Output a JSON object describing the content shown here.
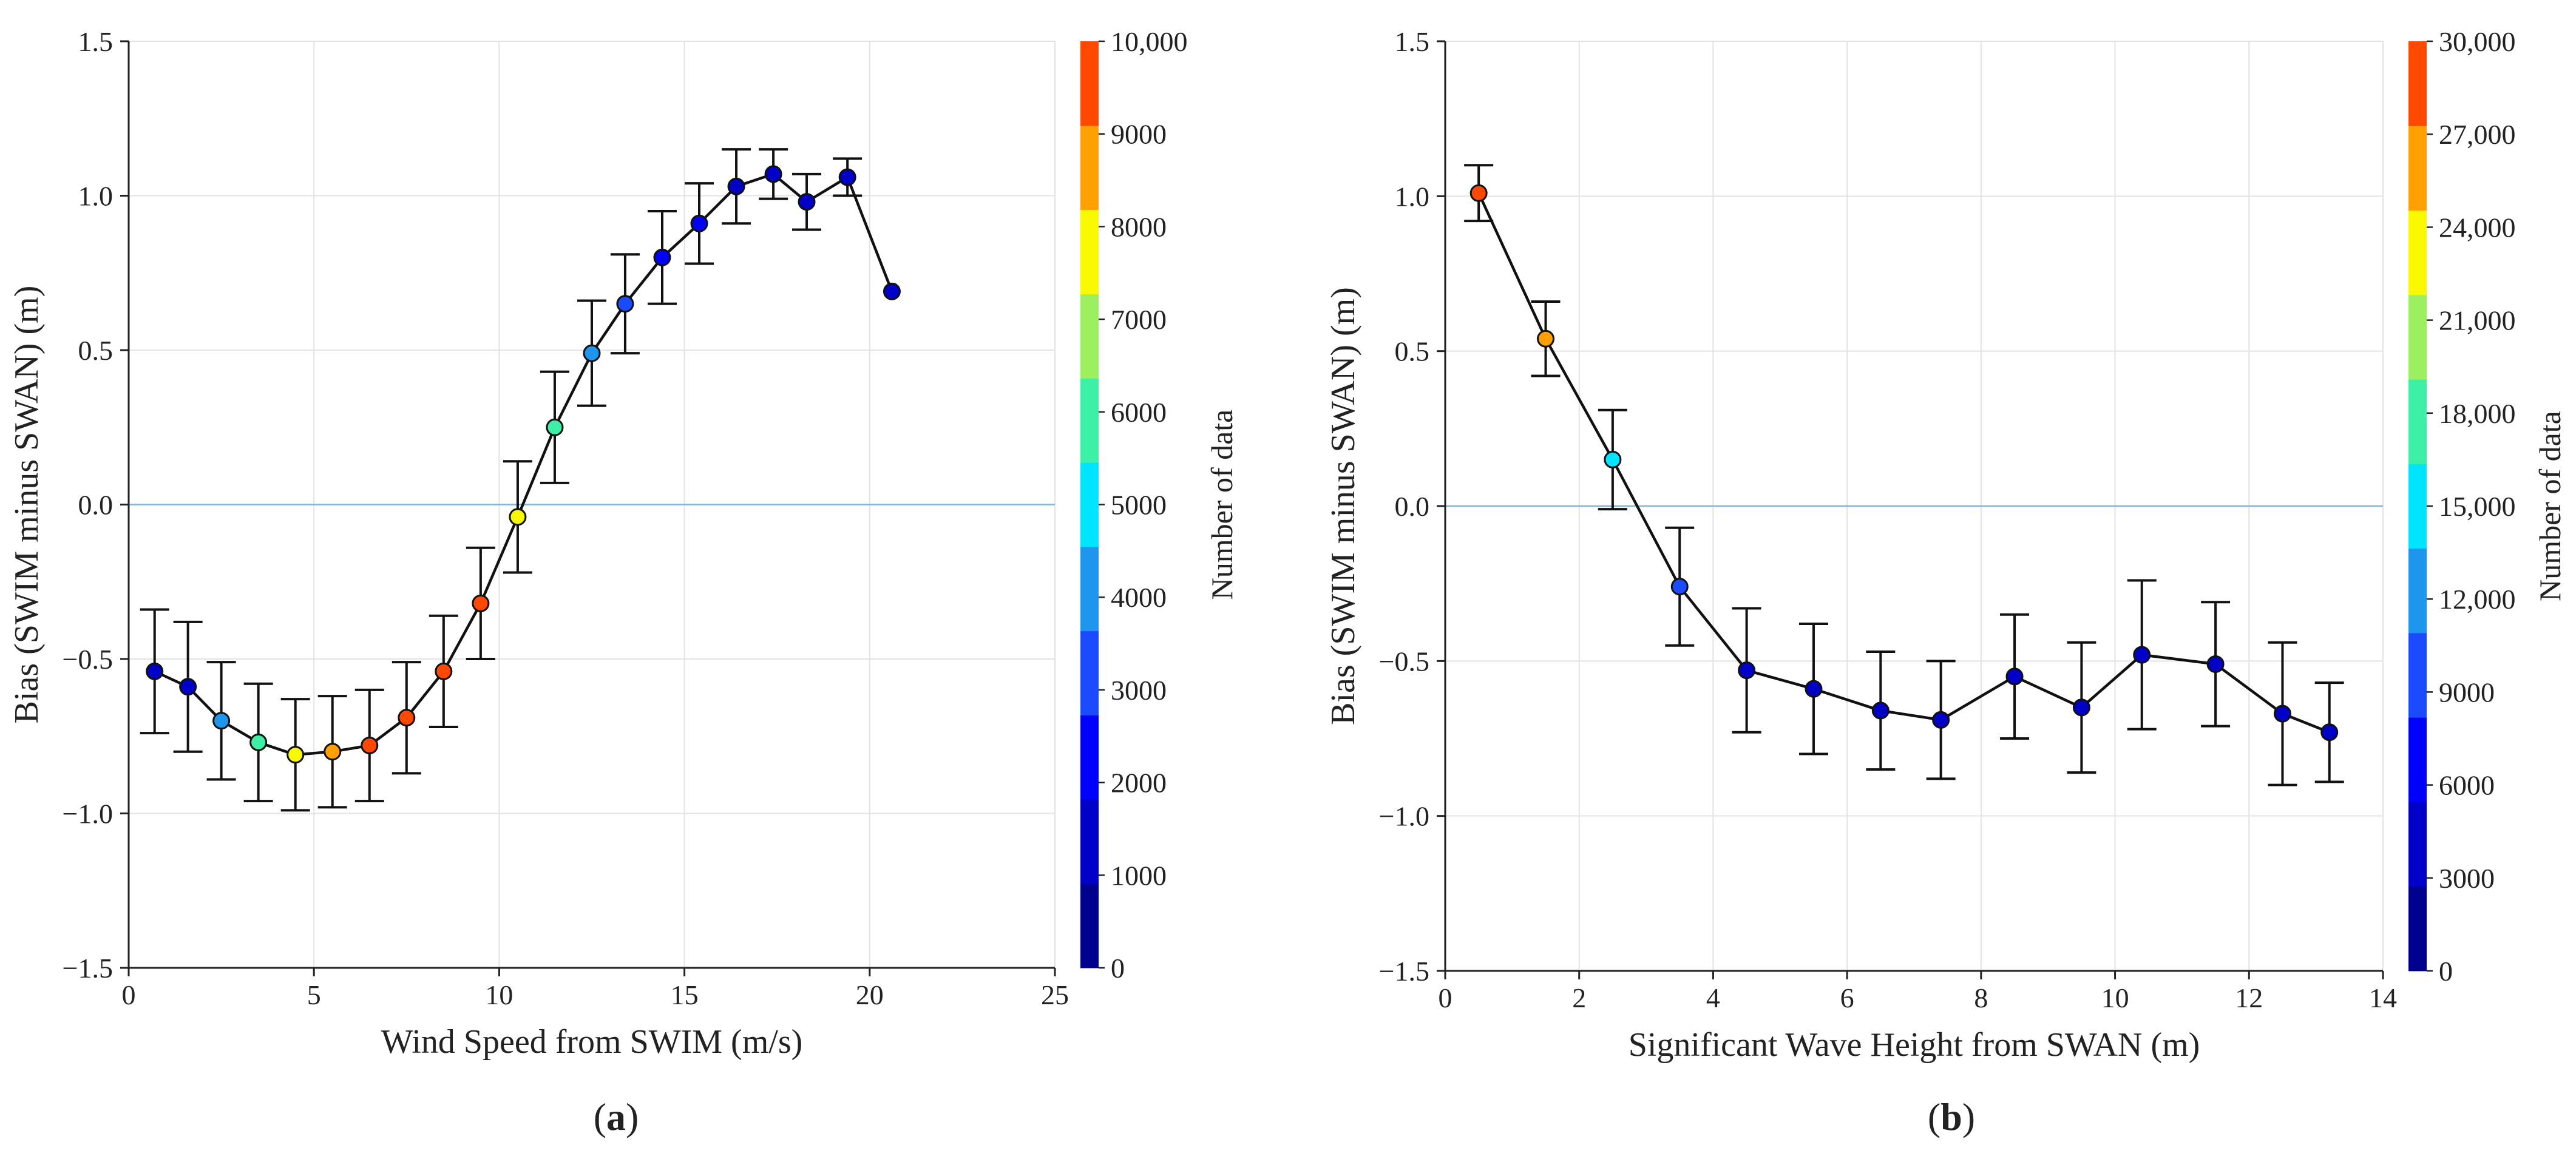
{
  "chart_data": [
    {
      "type": "scatter",
      "panel_label": "a",
      "title": "",
      "xlabel": "Wind Speed from SWIM (m/s)",
      "ylabel": "Bias (SWIM minus SWAN) (m)",
      "xlim": [
        0,
        25
      ],
      "ylim": [
        -1.5,
        1.5
      ],
      "xticks": [
        0,
        5,
        10,
        15,
        20,
        25
      ],
      "xtick_labels": [
        "0",
        "5",
        "10",
        "15",
        "20",
        "25"
      ],
      "yticks": [
        -1.5,
        -1.0,
        -0.5,
        0.0,
        0.5,
        1.0,
        1.5
      ],
      "ytick_labels": [
        "−1.5",
        "−1.0",
        "−0.5",
        "0.0",
        "0.5",
        "1.0",
        "1.5"
      ],
      "grid": true,
      "reference_line": 0,
      "colorbar": {
        "label": "Number of data",
        "min": 0,
        "max": 10000,
        "ticks": [
          0,
          1000,
          2000,
          3000,
          4000,
          5000,
          6000,
          7000,
          8000,
          9000,
          10000
        ],
        "tick_labels": [
          "0",
          "1000",
          "2000",
          "3000",
          "4000",
          "5000",
          "6000",
          "7000",
          "8000",
          "9000",
          "10,000"
        ],
        "colors": [
          "#00008f",
          "#0000c8",
          "#0000ff",
          "#1a4bff",
          "#1e96ee",
          "#00e5ff",
          "#3cf0a5",
          "#9cf060",
          "#f8f800",
          "#ffa000",
          "#ff4800"
        ]
      },
      "points": [
        {
          "x": 0.7,
          "y": -0.54,
          "err": 0.2,
          "count": 1500
        },
        {
          "x": 1.6,
          "y": -0.59,
          "err": 0.21,
          "count": 1500
        },
        {
          "x": 2.5,
          "y": -0.7,
          "err": 0.19,
          "count": 4200
        },
        {
          "x": 3.5,
          "y": -0.77,
          "err": 0.19,
          "count": 5500
        },
        {
          "x": 4.5,
          "y": -0.81,
          "err": 0.18,
          "count": 8000
        },
        {
          "x": 5.5,
          "y": -0.8,
          "err": 0.18,
          "count": 8600
        },
        {
          "x": 6.5,
          "y": -0.78,
          "err": 0.18,
          "count": 9700
        },
        {
          "x": 7.5,
          "y": -0.69,
          "err": 0.18,
          "count": 9700
        },
        {
          "x": 8.5,
          "y": -0.54,
          "err": 0.18,
          "count": 9700
        },
        {
          "x": 9.5,
          "y": -0.32,
          "err": 0.18,
          "count": 9700
        },
        {
          "x": 10.5,
          "y": -0.04,
          "err": 0.18,
          "count": 7500
        },
        {
          "x": 11.5,
          "y": 0.25,
          "err": 0.18,
          "count": 5700
        },
        {
          "x": 12.5,
          "y": 0.49,
          "err": 0.17,
          "count": 4200
        },
        {
          "x": 13.4,
          "y": 0.65,
          "err": 0.16,
          "count": 3500
        },
        {
          "x": 14.4,
          "y": 0.8,
          "err": 0.15,
          "count": 2500
        },
        {
          "x": 15.4,
          "y": 0.91,
          "err": 0.13,
          "count": 2500
        },
        {
          "x": 16.4,
          "y": 1.03,
          "err": 0.12,
          "count": 1500
        },
        {
          "x": 17.4,
          "y": 1.07,
          "err": 0.08,
          "count": 1500
        },
        {
          "x": 18.3,
          "y": 0.98,
          "err": 0.09,
          "count": 1500
        },
        {
          "x": 19.4,
          "y": 1.06,
          "err": 0.06,
          "count": 1500
        },
        {
          "x": 20.6,
          "y": 0.69,
          "err": 0,
          "count": 1500
        }
      ]
    },
    {
      "type": "scatter",
      "panel_label": "b",
      "title": "",
      "xlabel": "Significant Wave Height from SWAN (m)",
      "ylabel": "Bias (SWIM minus SWAN) (m)",
      "xlim": [
        0,
        14
      ],
      "ylim": [
        -1.5,
        1.5
      ],
      "xticks": [
        0,
        2,
        4,
        6,
        8,
        10,
        12,
        14
      ],
      "xtick_labels": [
        "0",
        "2",
        "4",
        "6",
        "8",
        "10",
        "12",
        "14"
      ],
      "yticks": [
        -1.5,
        -1.0,
        -0.5,
        0.0,
        0.5,
        1.0,
        1.5
      ],
      "ytick_labels": [
        "−1.5",
        "−1.0",
        "−0.5",
        "0.0",
        "0.5",
        "1.0",
        "1.5"
      ],
      "grid": true,
      "reference_line": 0,
      "colorbar": {
        "label": "Number of data",
        "min": 0,
        "max": 30000,
        "ticks": [
          0,
          3000,
          6000,
          9000,
          12000,
          15000,
          18000,
          21000,
          24000,
          27000,
          30000
        ],
        "tick_labels": [
          "0",
          "3000",
          "6000",
          "9000",
          "12,000",
          "15,000",
          "18,000",
          "21,000",
          "24,000",
          "27,000",
          "30,000"
        ],
        "colors": [
          "#00008f",
          "#0000c8",
          "#0000ff",
          "#1a4bff",
          "#1e96ee",
          "#00e5ff",
          "#3cf0a5",
          "#9cf060",
          "#f8f800",
          "#ffa000",
          "#ff4800"
        ]
      },
      "points": [
        {
          "x": 0.5,
          "y": 1.01,
          "err": 0.09,
          "count": 29000
        },
        {
          "x": 1.5,
          "y": 0.54,
          "err": 0.12,
          "count": 25000
        },
        {
          "x": 2.5,
          "y": 0.15,
          "err": 0.16,
          "count": 16000
        },
        {
          "x": 3.5,
          "y": -0.26,
          "err": 0.19,
          "count": 10000
        },
        {
          "x": 4.5,
          "y": -0.53,
          "err": 0.2,
          "count": 4500
        },
        {
          "x": 5.5,
          "y": -0.59,
          "err": 0.21,
          "count": 4500
        },
        {
          "x": 6.5,
          "y": -0.66,
          "err": 0.19,
          "count": 4500
        },
        {
          "x": 7.4,
          "y": -0.69,
          "err": 0.19,
          "count": 4500
        },
        {
          "x": 8.5,
          "y": -0.55,
          "err": 0.2,
          "count": 4500
        },
        {
          "x": 9.5,
          "y": -0.65,
          "err": 0.21,
          "count": 4500
        },
        {
          "x": 10.4,
          "y": -0.48,
          "err": 0.24,
          "count": 4500
        },
        {
          "x": 11.5,
          "y": -0.51,
          "err": 0.2,
          "count": 4500
        },
        {
          "x": 12.5,
          "y": -0.67,
          "err": 0.23,
          "count": 4500
        },
        {
          "x": 13.2,
          "y": -0.73,
          "err": 0.16,
          "count": 4500
        }
      ]
    }
  ]
}
